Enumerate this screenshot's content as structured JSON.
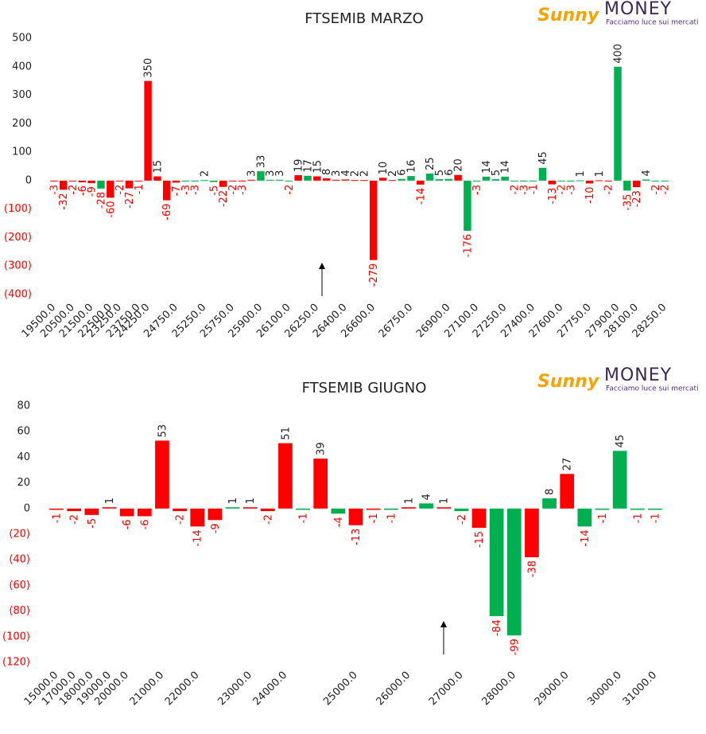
{
  "logo": {
    "name": "Sunny",
    "brand": "MONEY",
    "tagline": "Facciamo luce sui mercati"
  },
  "chart_data": [
    {
      "type": "bar",
      "title": "FTSEMIB MARZO",
      "categories": [
        "19500.0",
        null,
        "20500.0",
        null,
        "21500.0",
        null,
        "22500.0",
        "23250.0",
        null,
        "23750.0",
        "24250.0",
        null,
        null,
        "24750.0",
        null,
        null,
        "25250.0",
        null,
        null,
        "25750.0",
        null,
        null,
        "25900.0",
        null,
        null,
        "26100.0",
        null,
        null,
        "26250.0",
        null,
        null,
        "26400.0",
        null,
        null,
        "26600.0",
        null,
        null,
        null,
        "26750.0",
        null,
        null,
        null,
        "26900.0",
        null,
        null,
        "27100.0",
        null,
        null,
        "27250.0",
        null,
        null,
        "27400.0",
        null,
        null,
        "27600.0",
        null,
        null,
        "27750.0",
        null,
        null,
        "27900.0",
        null,
        "28100.0",
        null,
        null,
        "28250.0"
      ],
      "values": [
        -3,
        -32,
        -2,
        -6,
        -9,
        -28,
        -60,
        -2,
        -27,
        -1,
        350,
        15,
        -69,
        -7,
        -3,
        -3,
        2,
        -5,
        -22,
        -2,
        -3,
        3,
        33,
        3,
        3,
        -2,
        19,
        17,
        15,
        8,
        3,
        4,
        2,
        2,
        -279,
        10,
        2,
        6,
        16,
        -14,
        25,
        5,
        6,
        20,
        -176,
        -3,
        14,
        5,
        14,
        -2,
        -3,
        -1,
        45,
        -13,
        -2,
        -3,
        1,
        -10,
        1,
        -2,
        400,
        -35,
        -23,
        4,
        -2,
        -2
      ],
      "colors": [
        "#ff0000",
        "#ff0000",
        "#ff0000",
        "#ff0000",
        "#ff0000",
        "#00b050",
        "#ff0000",
        "#ff0000",
        "#ff0000",
        "#ff0000",
        "#ff0000",
        "#ff0000",
        "#ff0000",
        "#ff0000",
        "#00b050",
        "#00b050",
        "#00b050",
        "#00b050",
        "#ff0000",
        "#ff0000",
        "#ff0000",
        "#ff0000",
        "#00b050",
        "#00b050",
        "#00b050",
        "#00b050",
        "#ff0000",
        "#00b050",
        "#ff0000",
        "#ff0000",
        "#ff0000",
        "#ff0000",
        "#ff0000",
        "#ff0000",
        "#ff0000",
        "#ff0000",
        "#ff0000",
        "#00b050",
        "#00b050",
        "#ff0000",
        "#00b050",
        "#00b050",
        "#00b050",
        "#ff0000",
        "#00b050",
        "#00b050",
        "#00b050",
        "#00b050",
        "#00b050",
        "#00b050",
        "#00b050",
        "#00b050",
        "#00b050",
        "#ff0000",
        "#00b050",
        "#00b050",
        "#00b050",
        "#ff0000",
        "#ff0000",
        "#ff0000",
        "#00b050",
        "#00b050",
        "#ff0000",
        "#00b050",
        "#00b050",
        "#00b050"
      ],
      "ylim": [
        -400,
        500
      ],
      "yticks": [
        500,
        400,
        300,
        200,
        100,
        0,
        {
          "value": -100,
          "label": "(100)"
        },
        {
          "value": -200,
          "label": "(200)"
        },
        {
          "value": -300,
          "label": "(300)"
        },
        {
          "value": -400,
          "label": "(400)"
        }
      ]
    },
    {
      "type": "bar",
      "title": "FTSEMIB GIUGNO",
      "categories": [
        "15000.0",
        "17000.0",
        "18000.0",
        "19000.0",
        "20000.0",
        null,
        "21000.0",
        null,
        "22000.0",
        null,
        null,
        "23000.0",
        null,
        "24000.0",
        null,
        null,
        null,
        "25000.0",
        null,
        null,
        "26000.0",
        null,
        null,
        "27000.0",
        null,
        null,
        "28000.0",
        null,
        null,
        "29000.0",
        null,
        null,
        "30000.0",
        null,
        "31000.0"
      ],
      "values": [
        -1,
        -2,
        -5,
        1,
        -6,
        -6,
        53,
        -2,
        -14,
        -9,
        1,
        1,
        -2,
        51,
        -1,
        39,
        -4,
        -13,
        -1,
        -1,
        1,
        4,
        1,
        -2,
        -15,
        -84,
        -99,
        -38,
        8,
        27,
        -14,
        -1,
        45,
        -1,
        -1
      ],
      "colors": [
        "#ff0000",
        "#ff0000",
        "#ff0000",
        "#ff0000",
        "#ff0000",
        "#ff0000",
        "#ff0000",
        "#ff0000",
        "#ff0000",
        "#ff0000",
        "#00b050",
        "#ff0000",
        "#ff0000",
        "#ff0000",
        "#00b050",
        "#ff0000",
        "#00b050",
        "#ff0000",
        "#ff0000",
        "#00b050",
        "#ff0000",
        "#00b050",
        "#ff0000",
        "#00b050",
        "#ff0000",
        "#00b050",
        "#00b050",
        "#ff0000",
        "#00b050",
        "#ff0000",
        "#00b050",
        "#00b050",
        "#00b050",
        "#00b050",
        "#00b050"
      ],
      "ylim": [
        -120,
        80
      ],
      "yticks": [
        80,
        60,
        40,
        20,
        0,
        {
          "value": -20,
          "label": "(20)"
        },
        {
          "value": -40,
          "label": "(40)"
        },
        {
          "value": -60,
          "label": "(60)"
        },
        {
          "value": -80,
          "label": "(80)"
        },
        {
          "value": -100,
          "label": "(100)"
        },
        {
          "value": -120,
          "label": "(120)"
        }
      ]
    }
  ]
}
